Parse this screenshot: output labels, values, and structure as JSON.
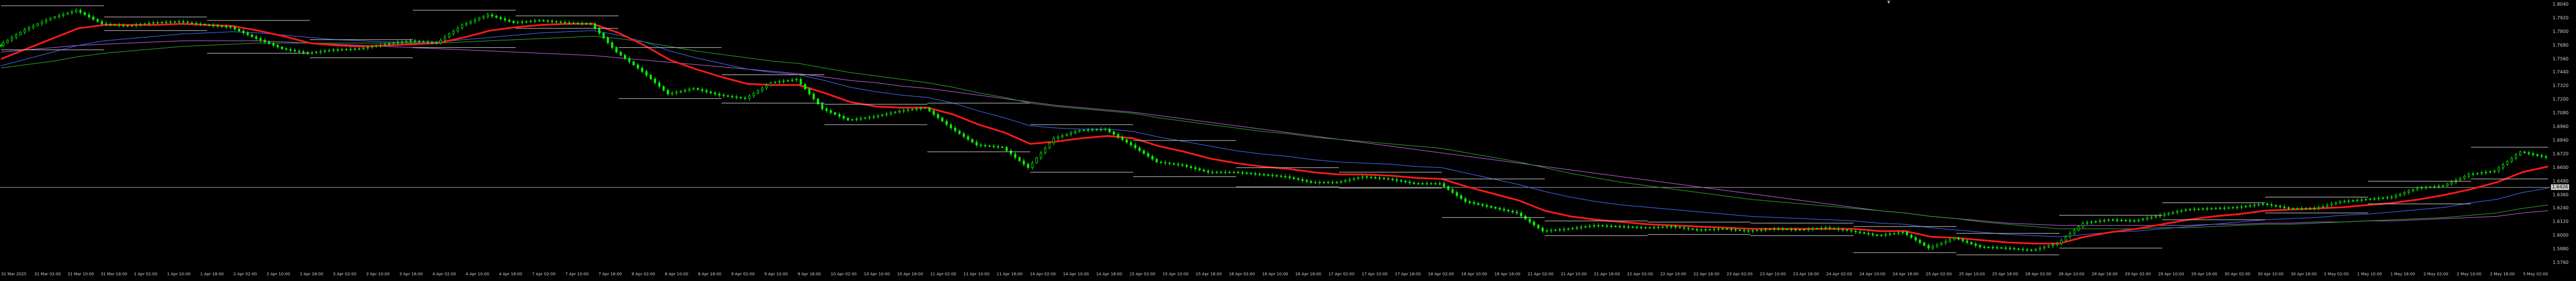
{
  "chart": {
    "symbol_mark": "▼",
    "current_price": "1.6426",
    "price_labels": [
      "1.8040",
      "1.7920",
      "1.7800",
      "1.7680",
      "1.7560",
      "1.7440",
      "1.7320",
      "1.7200",
      "1.7080",
      "1.6960",
      "1.6840",
      "1.6720",
      "1.6600",
      "1.6480",
      "1.6360",
      "1.6240",
      "1.6120",
      "1.6000",
      "1.5880",
      "1.5760"
    ],
    "time_labels": [
      "31 Mar 2025",
      "31 Mar 02:00",
      "31 Mar 10:00",
      "31 Mar 18:00",
      "1 Apr 02:00",
      "1 Apr 10:00",
      "1 Apr 18:00",
      "2 Apr 02:00",
      "2 Apr 10:00",
      "2 Apr 18:00",
      "3 Apr 02:00",
      "3 Apr 10:00",
      "3 Apr 18:00",
      "4 Apr 02:00",
      "4 Apr 10:00",
      "4 Apr 18:00",
      "7 Apr 02:00",
      "7 Apr 10:00",
      "7 Apr 18:00",
      "8 Apr 02:00",
      "8 Apr 10:00",
      "8 Apr 18:00",
      "9 Apr 02:00",
      "9 Apr 10:00",
      "9 Apr 18:00",
      "10 Apr 02:00",
      "10 Apr 10:00",
      "10 Apr 18:00",
      "11 Apr 02:00",
      "11 Apr 10:00",
      "11 Apr 18:00",
      "14 Apr 02:00",
      "14 Apr 10:00",
      "14 Apr 18:00",
      "15 Apr 02:00",
      "15 Apr 10:00",
      "15 Apr 18:00",
      "16 Apr 02:00",
      "16 Apr 10:00",
      "16 Apr 18:00",
      "17 Apr 02:00",
      "17 Apr 10:00",
      "17 Apr 18:00",
      "18 Apr 02:00",
      "18 Apr 10:00",
      "18 Apr 18:00",
      "21 Apr 02:00",
      "21 Apr 10:00",
      "21 Apr 18:00",
      "22 Apr 02:00",
      "22 Apr 10:00",
      "22 Apr 18:00",
      "23 Apr 02:00",
      "23 Apr 10:00",
      "23 Apr 18:00",
      "24 Apr 02:00",
      "24 Apr 10:00",
      "24 Apr 18:00",
      "25 Apr 02:00",
      "25 Apr 10:00",
      "25 Apr 18:00",
      "28 Apr 02:00",
      "28 Apr 10:00",
      "28 Apr 18:00",
      "29 Apr 02:00",
      "29 Apr 10:00",
      "29 Apr 18:00",
      "30 Apr 02:00",
      "30 Apr 10:00",
      "30 Apr 18:00",
      "1 May 02:00",
      "1 May 10:00",
      "1 May 18:00",
      "2 May 02:00",
      "2 May 10:00",
      "2 May 18:00",
      "5 May 02:00"
    ],
    "colors": {
      "background": "#000000",
      "candle": "#00ff00",
      "fast_ma": "#ff1a1a",
      "ma_blue": "#4a6cff",
      "ma_green": "#2ea82e",
      "ma_purple": "#c060e0",
      "level_lines": "#c8c8c8",
      "current_line": "#9a9a9a",
      "axis_text": "#cccccc"
    }
  },
  "chart_data": {
    "type": "line",
    "title": "",
    "ylim": [
      1.576,
      1.804
    ],
    "current_price": 1.6426,
    "series": [
      {
        "key": "close",
        "values": [
          1.768,
          1.782,
          1.792,
          1.799,
          1.787,
          1.785,
          1.788,
          1.789,
          1.786,
          1.784,
          1.774,
          1.765,
          1.761,
          1.764,
          1.765,
          1.769,
          1.772,
          1.77,
          1.786,
          1.795,
          1.788,
          1.79,
          1.788,
          1.787,
          1.762,
          1.745,
          1.725,
          1.73,
          1.724,
          1.721,
          1.735,
          1.738,
          1.712,
          1.702,
          1.705,
          1.71,
          1.713,
          1.695,
          1.68,
          1.678,
          1.66,
          1.686,
          1.693,
          1.694,
          1.68,
          1.665,
          1.662,
          1.656,
          1.656,
          1.654,
          1.652,
          1.647,
          1.647,
          1.652,
          1.65,
          1.646,
          1.646,
          1.63,
          1.625,
          1.62,
          1.604,
          1.606,
          1.609,
          1.608,
          1.607,
          1.608,
          1.605,
          1.606,
          1.604,
          1.606,
          1.605,
          1.607,
          1.604,
          1.6,
          1.603,
          1.589,
          1.598,
          1.59,
          1.589,
          1.587,
          1.593,
          1.611,
          1.614,
          1.613,
          1.618,
          1.623,
          1.624,
          1.625,
          1.628,
          1.624,
          1.624,
          1.63,
          1.632,
          1.634,
          1.642,
          1.644,
          1.654,
          1.657,
          1.674,
          1.669
        ]
      },
      {
        "key": "ma_fast",
        "values": [
          1.756,
          1.765,
          1.774,
          1.783,
          1.786,
          1.786,
          1.786,
          1.787,
          1.786,
          1.785,
          1.781,
          1.776,
          1.77,
          1.768,
          1.767,
          1.768,
          1.769,
          1.77,
          1.775,
          1.781,
          1.784,
          1.786,
          1.787,
          1.787,
          1.779,
          1.768,
          1.755,
          1.747,
          1.74,
          1.734,
          1.733,
          1.733,
          1.726,
          1.718,
          1.714,
          1.713,
          1.713,
          1.707,
          1.698,
          1.691,
          1.681,
          1.683,
          1.686,
          1.688,
          1.686,
          1.679,
          1.674,
          1.668,
          1.664,
          1.661,
          1.659,
          1.656,
          1.654,
          1.654,
          1.653,
          1.651,
          1.65,
          1.643,
          1.637,
          1.631,
          1.622,
          1.617,
          1.614,
          1.612,
          1.61,
          1.609,
          1.608,
          1.607,
          1.606,
          1.606,
          1.606,
          1.606,
          1.606,
          1.604,
          1.604,
          1.599,
          1.598,
          1.596,
          1.594,
          1.593,
          1.593,
          1.599,
          1.603,
          1.606,
          1.61,
          1.614,
          1.617,
          1.619,
          1.622,
          1.623,
          1.624,
          1.625,
          1.627,
          1.629,
          1.632,
          1.636,
          1.641,
          1.647,
          1.656,
          1.661
        ]
      },
      {
        "key": "ma_blue",
        "values": [
          1.75,
          1.756,
          1.762,
          1.768,
          1.772,
          1.774,
          1.776,
          1.778,
          1.779,
          1.78,
          1.779,
          1.777,
          1.775,
          1.773,
          1.772,
          1.771,
          1.771,
          1.771,
          1.773,
          1.775,
          1.777,
          1.779,
          1.78,
          1.781,
          1.777,
          1.771,
          1.763,
          1.757,
          1.752,
          1.747,
          1.744,
          1.742,
          1.737,
          1.731,
          1.727,
          1.724,
          1.722,
          1.717,
          1.71,
          1.704,
          1.697,
          1.695,
          1.694,
          1.694,
          1.692,
          1.687,
          1.683,
          1.679,
          1.675,
          1.672,
          1.67,
          1.667,
          1.665,
          1.664,
          1.663,
          1.661,
          1.66,
          1.655,
          1.65,
          1.645,
          1.639,
          1.634,
          1.63,
          1.627,
          1.625,
          1.623,
          1.621,
          1.619,
          1.617,
          1.616,
          1.615,
          1.614,
          1.613,
          1.611,
          1.61,
          1.607,
          1.605,
          1.603,
          1.601,
          1.6,
          1.599,
          1.601,
          1.603,
          1.604,
          1.606,
          1.608,
          1.61,
          1.612,
          1.614,
          1.615,
          1.616,
          1.618,
          1.619,
          1.621,
          1.623,
          1.625,
          1.629,
          1.632,
          1.638,
          1.642
        ]
      },
      {
        "key": "ma_green",
        "values": [
          1.748,
          1.751,
          1.754,
          1.758,
          1.761,
          1.763,
          1.765,
          1.767,
          1.768,
          1.769,
          1.77,
          1.77,
          1.77,
          1.77,
          1.77,
          1.77,
          1.77,
          1.77,
          1.771,
          1.772,
          1.773,
          1.774,
          1.775,
          1.776,
          1.774,
          1.771,
          1.767,
          1.763,
          1.76,
          1.757,
          1.754,
          1.752,
          1.748,
          1.744,
          1.741,
          1.738,
          1.735,
          1.731,
          1.726,
          1.722,
          1.717,
          1.714,
          1.712,
          1.71,
          1.708,
          1.704,
          1.701,
          1.698,
          1.695,
          1.692,
          1.69,
          1.687,
          1.685,
          1.683,
          1.681,
          1.679,
          1.677,
          1.673,
          1.669,
          1.665,
          1.66,
          1.655,
          1.651,
          1.647,
          1.644,
          1.641,
          1.638,
          1.635,
          1.632,
          1.63,
          1.628,
          1.626,
          1.624,
          1.622,
          1.62,
          1.617,
          1.615,
          1.612,
          1.61,
          1.608,
          1.606,
          1.606,
          1.606,
          1.606,
          1.607,
          1.607,
          1.608,
          1.609,
          1.61,
          1.61,
          1.611,
          1.612,
          1.613,
          1.614,
          1.615,
          1.616,
          1.618,
          1.62,
          1.624,
          1.627
        ]
      },
      {
        "key": "ma_purple",
        "values": [
          1.762,
          1.764,
          1.766,
          1.768,
          1.769,
          1.77,
          1.771,
          1.772,
          1.772,
          1.772,
          1.772,
          1.771,
          1.77,
          1.769,
          1.768,
          1.767,
          1.766,
          1.765,
          1.764,
          1.763,
          1.762,
          1.761,
          1.76,
          1.759,
          1.757,
          1.755,
          1.753,
          1.751,
          1.749,
          1.747,
          1.745,
          1.743,
          1.74,
          1.737,
          1.735,
          1.732,
          1.73,
          1.727,
          1.724,
          1.721,
          1.718,
          1.715,
          1.713,
          1.711,
          1.709,
          1.706,
          1.703,
          1.7,
          1.697,
          1.694,
          1.691,
          1.688,
          1.685,
          1.682,
          1.679,
          1.676,
          1.673,
          1.67,
          1.667,
          1.664,
          1.661,
          1.658,
          1.655,
          1.652,
          1.649,
          1.646,
          1.643,
          1.64,
          1.637,
          1.634,
          1.631,
          1.628,
          1.625,
          1.622,
          1.62,
          1.617,
          1.615,
          1.613,
          1.611,
          1.61,
          1.609,
          1.609,
          1.609,
          1.609,
          1.609,
          1.609,
          1.61,
          1.61,
          1.611,
          1.611,
          1.612,
          1.612,
          1.613,
          1.613,
          1.614,
          1.615,
          1.616,
          1.617,
          1.62,
          1.622
        ]
      }
    ]
  }
}
